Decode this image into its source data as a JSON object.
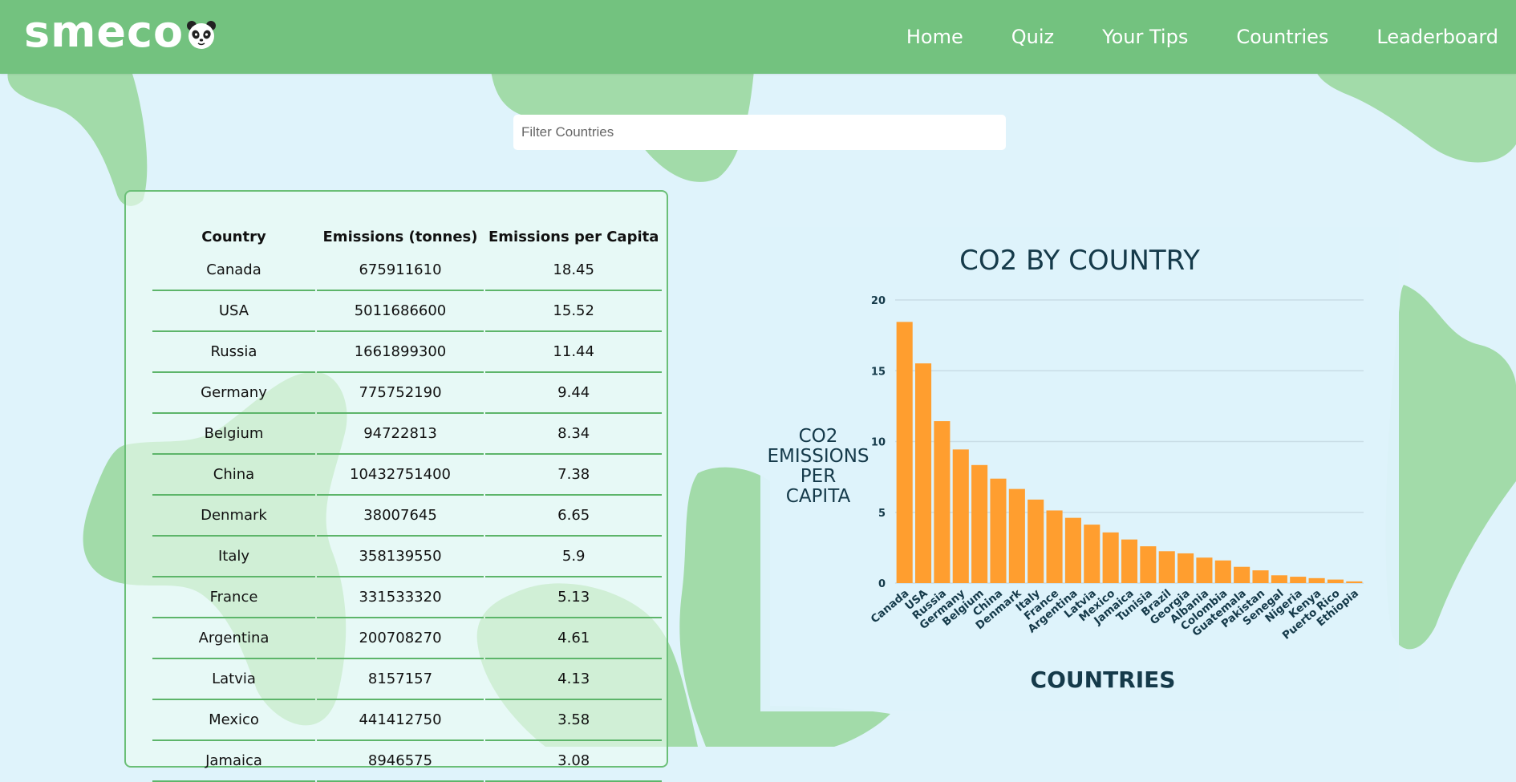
{
  "brand": {
    "logo_text": "smeco",
    "logo_icon": "panda-face-icon"
  },
  "nav": {
    "items": [
      "Home",
      "Quiz",
      "Your Tips",
      "Countries",
      "Leaderboard"
    ]
  },
  "filter": {
    "placeholder": "Filter Countries",
    "value": ""
  },
  "table": {
    "headers": [
      "Country",
      "Emissions (tonnes)",
      "Emissions per Capita"
    ],
    "rows": [
      [
        "Canada",
        "675911610",
        "18.45"
      ],
      [
        "USA",
        "5011686600",
        "15.52"
      ],
      [
        "Russia",
        "1661899300",
        "11.44"
      ],
      [
        "Germany",
        "775752190",
        "9.44"
      ],
      [
        "Belgium",
        "94722813",
        "8.34"
      ],
      [
        "China",
        "10432751400",
        "7.38"
      ],
      [
        "Denmark",
        "38007645",
        "6.65"
      ],
      [
        "Italy",
        "358139550",
        "5.9"
      ],
      [
        "France",
        "331533320",
        "5.13"
      ],
      [
        "Argentina",
        "200708270",
        "4.61"
      ],
      [
        "Latvia",
        "8157157",
        "4.13"
      ],
      [
        "Mexico",
        "441412750",
        "3.58"
      ],
      [
        "Jamaica",
        "8946575",
        "3.08"
      ]
    ]
  },
  "colors": {
    "navbar": "#73c27f",
    "background": "#dff3fb",
    "blob": "#a2dba9",
    "bar": "#ff9e2f",
    "accent_green": "#5db56a"
  },
  "chart_data": {
    "type": "bar",
    "title": "CO2 BY COUNTRY",
    "xlabel": "COUNTRIES",
    "ylabel": [
      "CO2",
      "EMISSIONS",
      "PER",
      "CAPITA"
    ],
    "ylim": [
      0,
      20
    ],
    "yticks": [
      0,
      5,
      10,
      15,
      20
    ],
    "grid": true,
    "categories": [
      "Canada",
      "USA",
      "Russia",
      "Germany",
      "Belgium",
      "China",
      "Denmark",
      "Italy",
      "France",
      "Argentina",
      "Latvia",
      "Mexico",
      "Jamaica",
      "Tunisia",
      "Brazil",
      "Georgia",
      "Albania",
      "Colombia",
      "Guatemala",
      "Pakistan",
      "Senegal",
      "Nigeria",
      "Kenya",
      "Puerto Rico",
      "Ethiopia"
    ],
    "values": [
      18.45,
      15.52,
      11.44,
      9.44,
      8.34,
      7.38,
      6.65,
      5.9,
      5.13,
      4.61,
      4.13,
      3.58,
      3.08,
      2.6,
      2.25,
      2.1,
      1.8,
      1.6,
      1.15,
      0.9,
      0.55,
      0.45,
      0.35,
      0.25,
      0.12
    ]
  }
}
